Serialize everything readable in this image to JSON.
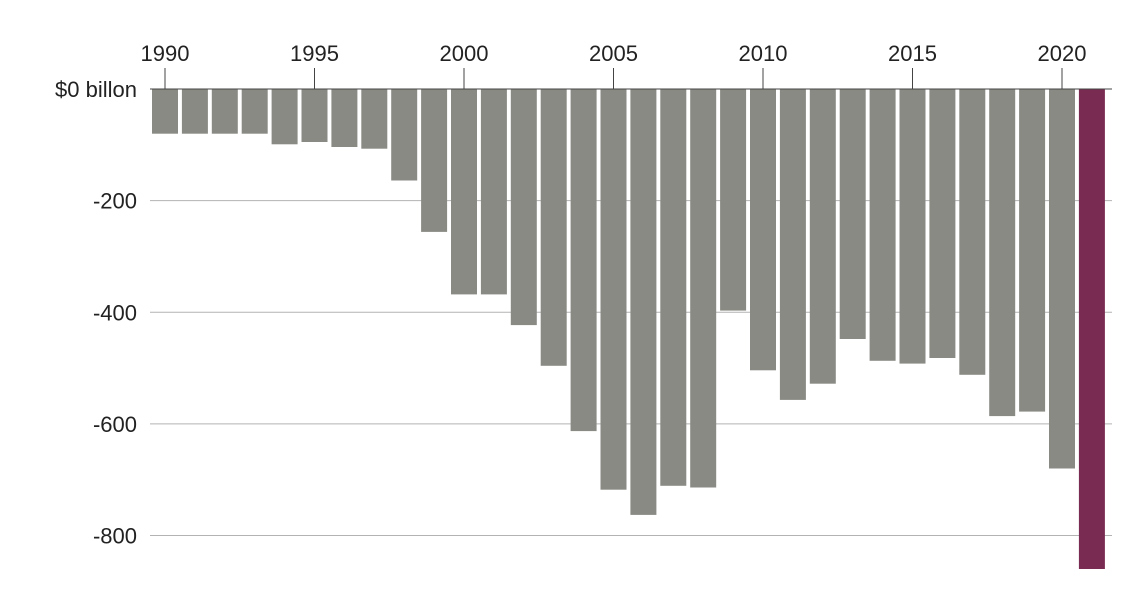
{
  "chart_data": {
    "type": "bar",
    "title": "",
    "xlabel": "",
    "ylabel": "",
    "x_tick_labels": [
      "1990",
      "1995",
      "2000",
      "2005",
      "2010",
      "2015",
      "2020"
    ],
    "y_tick_labels": [
      {
        "value": 0,
        "label": "$0 billon"
      },
      {
        "value": -200,
        "label": "-200"
      },
      {
        "value": -400,
        "label": "-400"
      },
      {
        "value": -600,
        "label": "-600"
      },
      {
        "value": -800,
        "label": "-800"
      }
    ],
    "ylim": [
      -860,
      0
    ],
    "categories": [
      1990,
      1991,
      1992,
      1993,
      1994,
      1995,
      1996,
      1997,
      1998,
      1999,
      2000,
      2001,
      2002,
      2003,
      2004,
      2005,
      2006,
      2007,
      2008,
      2009,
      2010,
      2011,
      2012,
      2013,
      2014,
      2015,
      2016,
      2017,
      2018,
      2019,
      2020,
      2021
    ],
    "values": [
      -80,
      -80,
      -80,
      -80,
      -99,
      -95,
      -104,
      -107,
      -164,
      -256,
      -368,
      -368,
      -423,
      -496,
      -613,
      -718,
      -763,
      -711,
      -714,
      -397,
      -504,
      -557,
      -528,
      -448,
      -487,
      -492,
      -482,
      -512,
      -586,
      -578,
      -680,
      -860
    ],
    "grid": true,
    "colors": {
      "default": "#8a8a85",
      "highlight": "#7a2b51",
      "grid": "#b3b3b3",
      "axis": "#444444",
      "text": "#222222"
    },
    "highlight_index": 31
  }
}
